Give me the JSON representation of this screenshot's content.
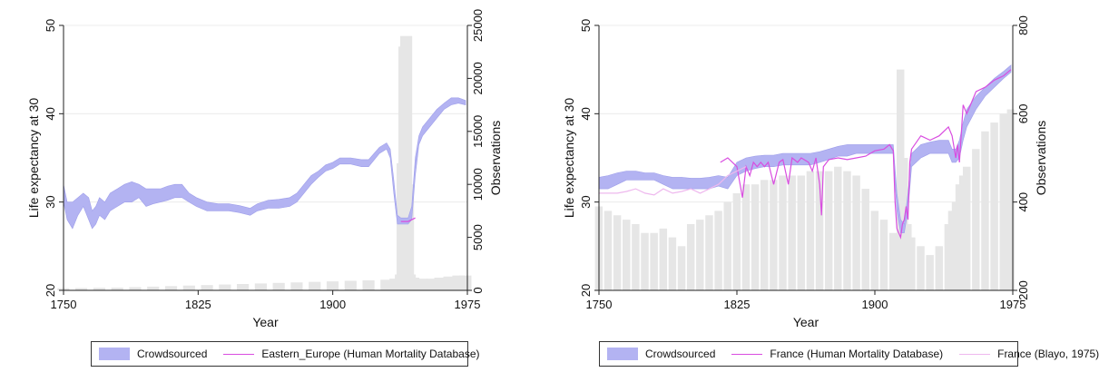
{
  "chart_data": [
    {
      "type": "area",
      "xlabel": "Year",
      "ylabel": "Life expectancy at 30",
      "y2label": "Observations",
      "xlim": [
        1750,
        1975
      ],
      "ylim": [
        20,
        50
      ],
      "y2lim": [
        0,
        25000
      ],
      "xticks": [
        "1750",
        "1825",
        "1900",
        "1975"
      ],
      "yticks": [
        "20",
        "30",
        "40",
        "50"
      ],
      "y2ticks": [
        "0",
        "5000",
        "10000",
        "15000",
        "20000",
        "25000"
      ],
      "grid": true,
      "legend_position": "bottom",
      "series": [
        {
          "name": "Crowdsourced",
          "kind": "band",
          "color": "#b3b3f2",
          "x": [
            1750,
            1752,
            1755,
            1758,
            1761,
            1764,
            1766,
            1768,
            1770,
            1773,
            1776,
            1780,
            1784,
            1788,
            1792,
            1796,
            1800,
            1804,
            1808,
            1812,
            1816,
            1820,
            1824,
            1830,
            1836,
            1842,
            1848,
            1854,
            1858,
            1864,
            1870,
            1876,
            1880,
            1884,
            1888,
            1892,
            1896,
            1900,
            1904,
            1910,
            1916,
            1920,
            1926,
            1930,
            1932,
            1934,
            1936,
            1938,
            1940,
            1942,
            1944,
            1946,
            1948,
            1950,
            1954,
            1958,
            1962,
            1966,
            1970,
            1974
          ],
          "lower": [
            30.0,
            28.0,
            27.0,
            28.5,
            29.5,
            28.0,
            27.0,
            27.5,
            28.5,
            28.0,
            29.0,
            29.5,
            30.0,
            30.0,
            30.5,
            29.5,
            29.8,
            30.0,
            30.2,
            30.5,
            30.5,
            30.0,
            29.5,
            29.0,
            29.0,
            29.0,
            28.8,
            28.5,
            29.0,
            29.3,
            29.3,
            29.5,
            30.0,
            31.0,
            32.0,
            32.8,
            33.5,
            33.8,
            34.3,
            34.3,
            34.0,
            34.0,
            35.5,
            36.0,
            35.0,
            31.0,
            27.5,
            27.5,
            27.5,
            27.5,
            28.0,
            33.0,
            36.5,
            37.5,
            38.5,
            39.5,
            40.5,
            41.0,
            41.2,
            41.0
          ],
          "upper": [
            32.0,
            30.0,
            30.0,
            30.5,
            31.0,
            30.5,
            29.0,
            29.5,
            30.5,
            30.0,
            31.0,
            31.5,
            32.0,
            32.3,
            32.0,
            31.5,
            31.5,
            31.5,
            31.8,
            32.0,
            32.0,
            31.0,
            30.5,
            30.0,
            29.8,
            29.8,
            29.6,
            29.3,
            29.8,
            30.2,
            30.3,
            30.5,
            31.0,
            32.0,
            33.0,
            33.5,
            34.2,
            34.5,
            35.0,
            35.0,
            34.8,
            34.8,
            36.2,
            36.7,
            36.0,
            32.5,
            28.5,
            28.2,
            28.2,
            28.2,
            29.5,
            35.0,
            37.5,
            38.5,
            39.5,
            40.5,
            41.2,
            41.8,
            41.8,
            41.5
          ]
        },
        {
          "name": "Eastern_Europe (Human Mortality Database)",
          "kind": "line",
          "color": "#d94de0",
          "x": [
            1938,
            1942,
            1946
          ],
          "y": [
            27.8,
            27.8,
            28.2
          ]
        },
        {
          "name": "Observations",
          "kind": "bar",
          "axis": "y2",
          "color": "#e6e6e6",
          "x": [
            1750,
            1760,
            1770,
            1780,
            1790,
            1800,
            1810,
            1820,
            1830,
            1840,
            1850,
            1860,
            1870,
            1880,
            1890,
            1900,
            1910,
            1920,
            1930,
            1935,
            1938,
            1939,
            1940,
            1941,
            1942,
            1943,
            1945,
            1950,
            1955,
            1960,
            1965,
            1970,
            1974
          ],
          "y": [
            200,
            220,
            240,
            260,
            300,
            350,
            400,
            450,
            500,
            550,
            600,
            650,
            700,
            750,
            800,
            850,
            900,
            950,
            1000,
            1100,
            1500,
            12000,
            23000,
            24000,
            10000,
            1500,
            1200,
            1100,
            1100,
            1200,
            1300,
            1400,
            1400
          ]
        }
      ]
    },
    {
      "type": "area",
      "xlabel": "Year",
      "ylabel": "Life expectancy at 30",
      "y2label": "Observations",
      "xlim": [
        1750,
        1975
      ],
      "ylim": [
        20,
        50
      ],
      "y2lim": [
        200,
        800
      ],
      "xticks": [
        "1750",
        "1825",
        "1900",
        "1975"
      ],
      "yticks": [
        "20",
        "30",
        "40",
        "50"
      ],
      "y2ticks": [
        "200",
        "400",
        "600",
        "800"
      ],
      "grid": true,
      "legend_position": "bottom",
      "series": [
        {
          "name": "Crowdsourced",
          "kind": "band",
          "color": "#b3b3f2",
          "x": [
            1750,
            1755,
            1760,
            1765,
            1770,
            1775,
            1780,
            1785,
            1790,
            1795,
            1800,
            1805,
            1810,
            1815,
            1820,
            1825,
            1830,
            1835,
            1840,
            1845,
            1850,
            1855,
            1860,
            1865,
            1870,
            1875,
            1880,
            1885,
            1890,
            1895,
            1900,
            1905,
            1910,
            1912,
            1914,
            1916,
            1918,
            1920,
            1925,
            1930,
            1935,
            1940,
            1942,
            1944,
            1946,
            1948,
            1950,
            1955,
            1960,
            1965,
            1970,
            1974
          ],
          "lower": [
            31.5,
            31.5,
            32.0,
            32.5,
            32.5,
            32.5,
            32.5,
            32.0,
            31.5,
            31.5,
            31.5,
            31.5,
            31.5,
            31.8,
            31.5,
            33.0,
            33.5,
            33.8,
            34.0,
            34.0,
            34.2,
            34.2,
            34.2,
            34.2,
            34.5,
            34.8,
            35.2,
            35.2,
            35.5,
            35.5,
            35.5,
            35.5,
            35.5,
            29.0,
            26.5,
            26.5,
            29.0,
            34.0,
            35.0,
            35.5,
            35.5,
            35.5,
            34.5,
            34.5,
            35.0,
            37.0,
            38.5,
            40.5,
            42.0,
            43.0,
            44.0,
            44.7
          ],
          "upper": [
            32.8,
            33.0,
            33.3,
            33.5,
            33.5,
            33.3,
            33.3,
            33.0,
            32.8,
            32.8,
            32.7,
            32.7,
            32.8,
            33.0,
            32.8,
            34.5,
            35.0,
            35.2,
            35.3,
            35.3,
            35.5,
            35.5,
            35.5,
            35.5,
            35.7,
            36.0,
            36.3,
            36.5,
            36.5,
            36.5,
            36.5,
            36.5,
            36.5,
            31.0,
            28.0,
            27.5,
            31.0,
            35.5,
            36.5,
            36.8,
            37.0,
            37.0,
            36.0,
            36.0,
            37.0,
            39.0,
            40.5,
            42.0,
            43.0,
            44.0,
            44.8,
            45.5
          ]
        },
        {
          "name": "France (Human Mortality Database)",
          "kind": "line",
          "color": "#d94de0",
          "x": [
            1816,
            1820,
            1825,
            1828,
            1830,
            1832,
            1834,
            1836,
            1838,
            1840,
            1842,
            1845,
            1848,
            1850,
            1853,
            1855,
            1858,
            1860,
            1864,
            1866,
            1868,
            1870,
            1871,
            1872,
            1875,
            1880,
            1885,
            1890,
            1895,
            1900,
            1905,
            1908,
            1910,
            1911,
            1912,
            1914,
            1915,
            1916,
            1917,
            1918,
            1919,
            1920,
            1925,
            1930,
            1935,
            1940,
            1942,
            1944,
            1945,
            1946,
            1948,
            1950,
            1955,
            1960,
            1965,
            1970,
            1974
          ],
          "y": [
            34.5,
            35.0,
            34.0,
            30.5,
            34.0,
            33.0,
            34.5,
            34.0,
            34.5,
            34.0,
            34.5,
            32.0,
            34.5,
            34.8,
            32.0,
            35.0,
            34.5,
            35.0,
            34.5,
            33.5,
            35.0,
            32.0,
            28.5,
            34.0,
            34.8,
            35.0,
            34.8,
            35.0,
            35.2,
            35.8,
            36.0,
            36.5,
            35.8,
            30.0,
            27.0,
            26.0,
            27.5,
            28.0,
            29.5,
            28.0,
            34.5,
            36.0,
            37.5,
            37.0,
            37.5,
            38.5,
            37.5,
            35.0,
            36.5,
            34.5,
            41.0,
            40.0,
            42.5,
            43.0,
            43.8,
            44.3,
            45.0
          ]
        },
        {
          "name": "France (Blayo, 1975)",
          "kind": "line",
          "color": "#eeb8ee",
          "x": [
            1750,
            1755,
            1760,
            1765,
            1770,
            1775,
            1780,
            1785,
            1790,
            1795,
            1800,
            1805,
            1810,
            1815,
            1820,
            1825,
            1830
          ],
          "y": [
            31.0,
            31.0,
            31.0,
            31.2,
            31.5,
            31.0,
            30.8,
            31.5,
            31.0,
            31.2,
            31.5,
            31.0,
            31.5,
            32.0,
            33.0,
            33.5,
            34.0
          ]
        },
        {
          "name": "Observations",
          "kind": "bar",
          "axis": "y2",
          "color": "#e6e6e6",
          "x": [
            1750,
            1755,
            1760,
            1765,
            1770,
            1775,
            1780,
            1785,
            1790,
            1795,
            1800,
            1805,
            1810,
            1815,
            1820,
            1825,
            1830,
            1835,
            1840,
            1845,
            1850,
            1855,
            1860,
            1865,
            1870,
            1875,
            1880,
            1885,
            1890,
            1895,
            1900,
            1905,
            1910,
            1912,
            1914,
            1916,
            1918,
            1920,
            1925,
            1930,
            1935,
            1940,
            1942,
            1944,
            1946,
            1948,
            1950,
            1955,
            1960,
            1965,
            1970,
            1974
          ],
          "y": [
            390,
            380,
            370,
            360,
            350,
            330,
            330,
            340,
            320,
            300,
            350,
            360,
            370,
            380,
            400,
            420,
            440,
            440,
            450,
            450,
            460,
            460,
            460,
            470,
            470,
            470,
            480,
            470,
            460,
            430,
            380,
            360,
            330,
            300,
            700,
            500,
            350,
            320,
            300,
            280,
            300,
            350,
            380,
            400,
            440,
            460,
            480,
            520,
            560,
            580,
            600,
            610
          ]
        }
      ]
    }
  ]
}
